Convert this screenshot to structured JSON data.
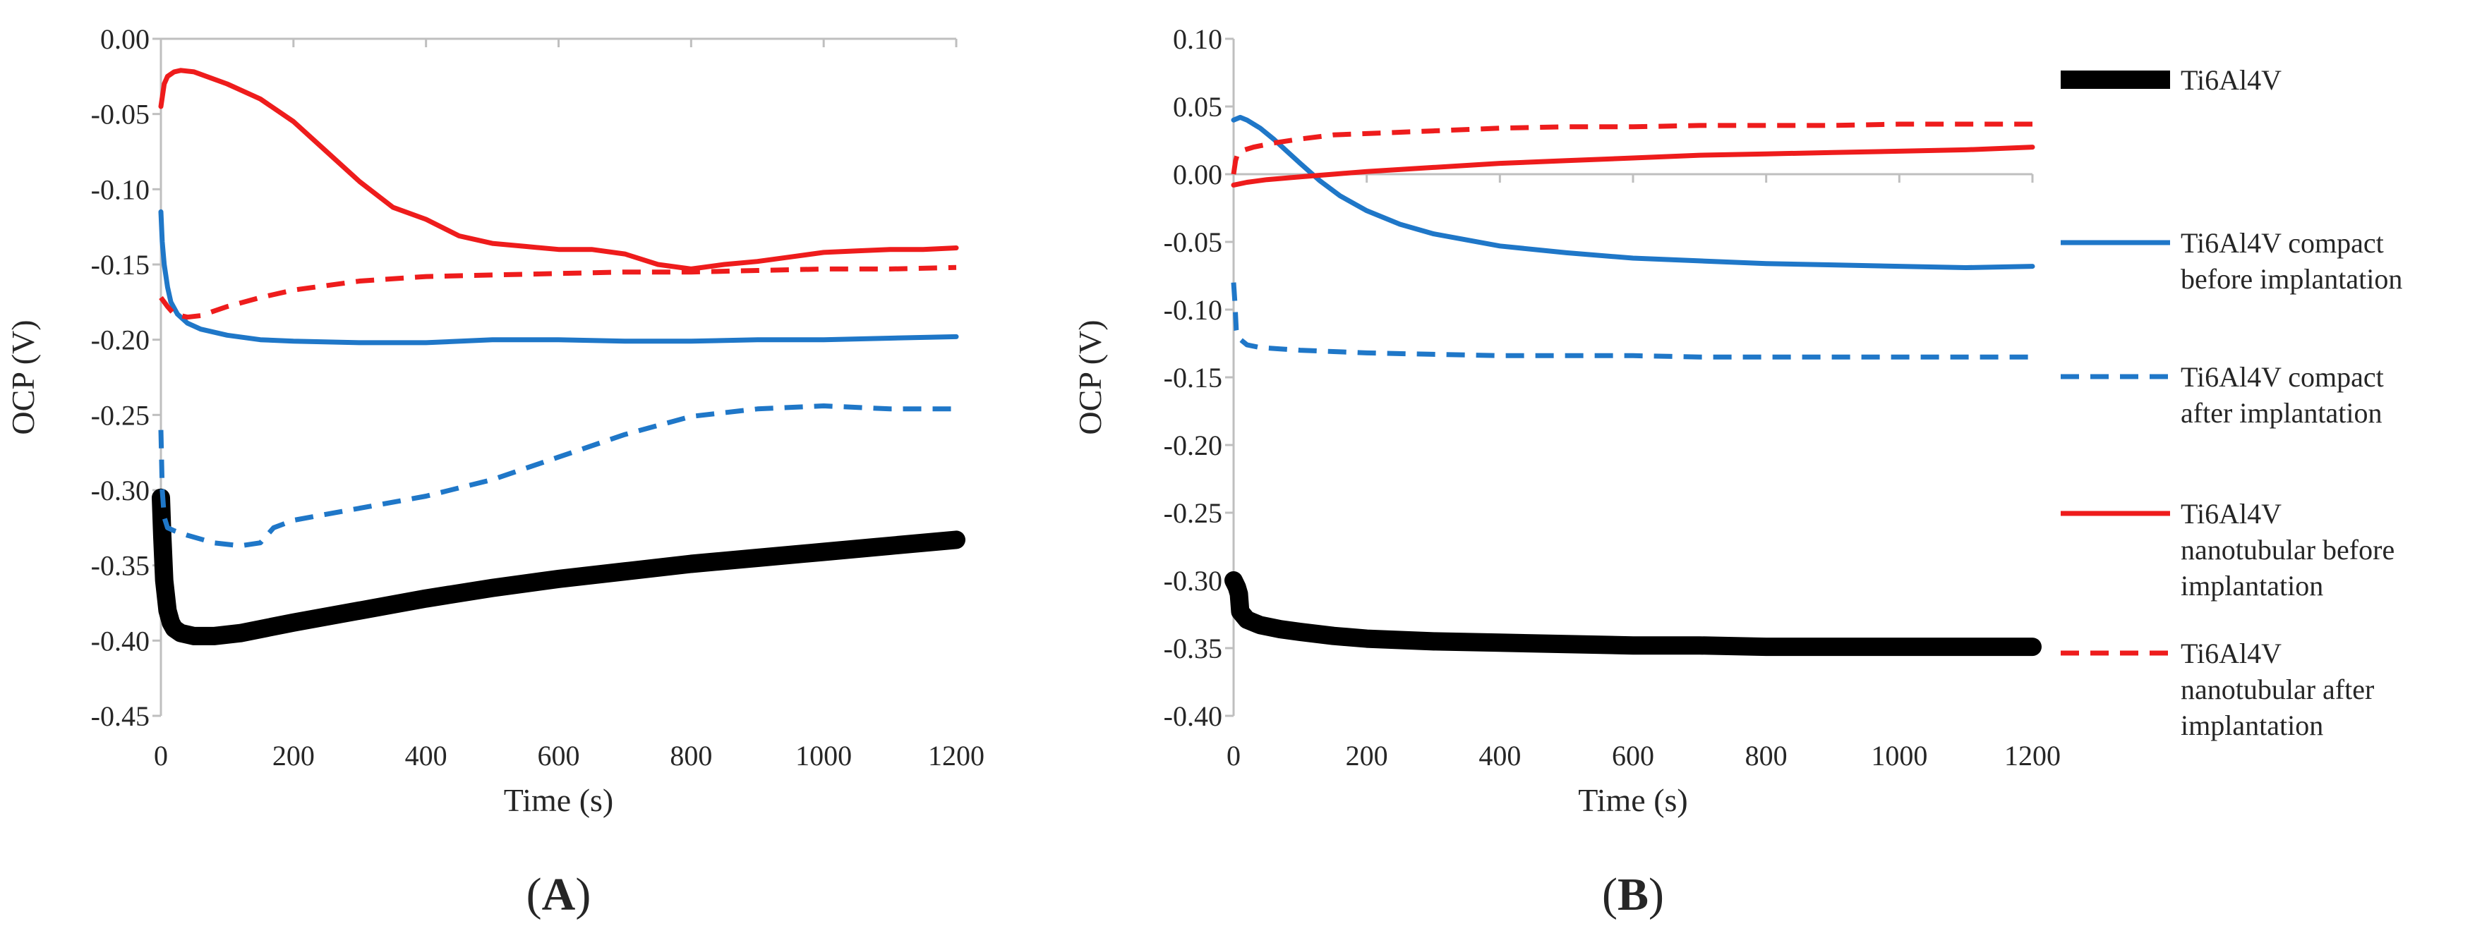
{
  "chart_data": [
    {
      "type": "line",
      "panel_label_open": "(",
      "panel_label": "A",
      "panel_label_close": ")",
      "xlabel": "Time (s)",
      "ylabel": "OCP (V)",
      "xlim": [
        0,
        1200
      ],
      "ylim": [
        -0.45,
        0.0
      ],
      "xticks": [
        0,
        200,
        400,
        600,
        800,
        1000,
        1200
      ],
      "xtick_labels": [
        "0",
        "200",
        "400",
        "600",
        "800",
        "1000",
        "1200"
      ],
      "yticks": [
        0.0,
        -0.05,
        -0.1,
        -0.15,
        -0.2,
        -0.25,
        -0.3,
        -0.35,
        -0.4,
        -0.45
      ],
      "ytick_labels": [
        "0.00",
        "-0.05",
        "-0.10",
        "-0.15",
        "-0.20",
        "-0.25",
        "-0.30",
        "-0.35",
        "-0.40",
        "-0.45"
      ],
      "series": [
        {
          "name": "Ti6Al4V",
          "color": "#000000",
          "style": "solid",
          "weight": "thick",
          "x": [
            0,
            2,
            5,
            10,
            15,
            20,
            30,
            50,
            80,
            120,
            200,
            300,
            400,
            500,
            600,
            700,
            800,
            900,
            1000,
            1100,
            1200
          ],
          "y": [
            -0.305,
            -0.33,
            -0.36,
            -0.38,
            -0.388,
            -0.392,
            -0.395,
            -0.397,
            -0.397,
            -0.395,
            -0.388,
            -0.38,
            -0.372,
            -0.365,
            -0.359,
            -0.354,
            -0.349,
            -0.345,
            -0.341,
            -0.337,
            -0.333
          ]
        },
        {
          "name": "Ti6Al4V compact before implantation",
          "color": "#1f77c8",
          "style": "solid",
          "weight": "normal",
          "x": [
            0,
            2,
            5,
            10,
            15,
            25,
            40,
            60,
            100,
            150,
            200,
            300,
            400,
            500,
            600,
            700,
            800,
            900,
            1000,
            1100,
            1200
          ],
          "y": [
            -0.115,
            -0.135,
            -0.15,
            -0.165,
            -0.175,
            -0.183,
            -0.189,
            -0.193,
            -0.197,
            -0.2,
            -0.201,
            -0.202,
            -0.202,
            -0.2,
            -0.2,
            -0.201,
            -0.201,
            -0.2,
            -0.2,
            -0.199,
            -0.198
          ]
        },
        {
          "name": "Ti6Al4V compact after implantation",
          "color": "#1f77c8",
          "style": "dashed",
          "weight": "normal",
          "x": [
            0,
            2,
            5,
            10,
            20,
            40,
            80,
            120,
            150,
            170,
            200,
            300,
            400,
            500,
            600,
            700,
            800,
            900,
            1000,
            1100,
            1200
          ],
          "y": [
            -0.26,
            -0.3,
            -0.318,
            -0.325,
            -0.327,
            -0.33,
            -0.335,
            -0.337,
            -0.335,
            -0.325,
            -0.32,
            -0.312,
            -0.304,
            -0.293,
            -0.278,
            -0.263,
            -0.251,
            -0.246,
            -0.244,
            -0.246,
            -0.246
          ]
        },
        {
          "name": "Ti6Al4V nanotubular before implantation",
          "color": "#ee1c1c",
          "style": "solid",
          "weight": "normal",
          "x": [
            0,
            5,
            10,
            20,
            30,
            50,
            100,
            150,
            200,
            250,
            300,
            350,
            400,
            450,
            500,
            550,
            600,
            650,
            700,
            750,
            800,
            850,
            900,
            950,
            1000,
            1050,
            1100,
            1150,
            1200
          ],
          "y": [
            -0.045,
            -0.03,
            -0.025,
            -0.022,
            -0.021,
            -0.022,
            -0.03,
            -0.04,
            -0.055,
            -0.075,
            -0.095,
            -0.112,
            -0.12,
            -0.131,
            -0.136,
            -0.138,
            -0.14,
            -0.14,
            -0.143,
            -0.15,
            -0.153,
            -0.15,
            -0.148,
            -0.145,
            -0.142,
            -0.141,
            -0.14,
            -0.14,
            -0.139
          ]
        },
        {
          "name": "Ti6Al4V nanotubular after implantation",
          "color": "#ee1c1c",
          "style": "dashed",
          "weight": "normal",
          "x": [
            0,
            5,
            10,
            20,
            40,
            60,
            100,
            150,
            200,
            300,
            400,
            500,
            600,
            700,
            800,
            900,
            1000,
            1100,
            1200
          ],
          "y": [
            -0.172,
            -0.175,
            -0.178,
            -0.183,
            -0.185,
            -0.184,
            -0.178,
            -0.172,
            -0.167,
            -0.161,
            -0.158,
            -0.157,
            -0.156,
            -0.155,
            -0.155,
            -0.154,
            -0.153,
            -0.153,
            -0.152
          ]
        }
      ]
    },
    {
      "type": "line",
      "panel_label_open": "(",
      "panel_label": "B",
      "panel_label_close": ")",
      "xlabel": "Time (s)",
      "ylabel": "OCP (V)",
      "xlim": [
        0,
        1200
      ],
      "ylim": [
        -0.4,
        0.1
      ],
      "xticks": [
        0,
        200,
        400,
        600,
        800,
        1000,
        1200
      ],
      "xtick_labels": [
        "0",
        "200",
        "400",
        "600",
        "800",
        "1000",
        "1200"
      ],
      "yticks": [
        0.1,
        0.05,
        0.0,
        -0.05,
        -0.1,
        -0.15,
        -0.2,
        -0.25,
        -0.3,
        -0.35,
        -0.4
      ],
      "ytick_labels": [
        "0.10",
        "0.05",
        "0.00",
        "-0.05",
        "-0.10",
        "-0.15",
        "-0.20",
        "-0.25",
        "-0.30",
        "-0.35",
        "-0.40"
      ],
      "series": [
        {
          "name": "Ti6Al4V",
          "color": "#000000",
          "style": "solid",
          "weight": "thick",
          "x": [
            0,
            2,
            5,
            8,
            10,
            20,
            40,
            70,
            100,
            150,
            200,
            300,
            400,
            500,
            600,
            700,
            800,
            900,
            1000,
            1100,
            1200
          ],
          "y": [
            -0.3,
            -0.302,
            -0.305,
            -0.31,
            -0.323,
            -0.329,
            -0.333,
            -0.336,
            -0.338,
            -0.341,
            -0.343,
            -0.345,
            -0.346,
            -0.347,
            -0.348,
            -0.348,
            -0.349,
            -0.349,
            -0.349,
            -0.349,
            -0.349
          ]
        },
        {
          "name": "Ti6Al4V compact before implantation",
          "color": "#1f77c8",
          "style": "solid",
          "weight": "normal",
          "x": [
            0,
            10,
            20,
            40,
            60,
            80,
            100,
            130,
            160,
            200,
            250,
            300,
            400,
            500,
            600,
            700,
            800,
            900,
            1000,
            1100,
            1200
          ],
          "y": [
            0.04,
            0.042,
            0.04,
            0.034,
            0.026,
            0.017,
            0.008,
            -0.005,
            -0.016,
            -0.027,
            -0.037,
            -0.044,
            -0.053,
            -0.058,
            -0.062,
            -0.064,
            -0.066,
            -0.067,
            -0.068,
            -0.069,
            -0.068
          ]
        },
        {
          "name": "Ti6Al4V compact after implantation",
          "color": "#1f77c8",
          "style": "dashed",
          "weight": "normal",
          "x": [
            0,
            2,
            4,
            6,
            10,
            20,
            40,
            70,
            100,
            150,
            200,
            300,
            400,
            500,
            600,
            700,
            800,
            900,
            1000,
            1100,
            1200
          ],
          "y": [
            -0.08,
            -0.095,
            -0.115,
            -0.12,
            -0.122,
            -0.126,
            -0.128,
            -0.129,
            -0.13,
            -0.131,
            -0.132,
            -0.133,
            -0.134,
            -0.134,
            -0.134,
            -0.135,
            -0.135,
            -0.135,
            -0.135,
            -0.135,
            -0.135
          ]
        },
        {
          "name": "Ti6Al4V nanotubular before implantation",
          "color": "#ee1c1c",
          "style": "solid",
          "weight": "normal",
          "x": [
            0,
            20,
            50,
            100,
            150,
            200,
            300,
            400,
            500,
            600,
            700,
            800,
            900,
            1000,
            1100,
            1200
          ],
          "y": [
            -0.008,
            -0.006,
            -0.004,
            -0.002,
            0.0,
            0.002,
            0.005,
            0.008,
            0.01,
            0.012,
            0.014,
            0.015,
            0.016,
            0.017,
            0.018,
            0.02
          ]
        },
        {
          "name": "Ti6Al4V nanotubular after implantation",
          "color": "#ee1c1c",
          "style": "dashed",
          "weight": "normal",
          "x": [
            0,
            3,
            6,
            10,
            30,
            60,
            100,
            150,
            200,
            300,
            400,
            500,
            600,
            700,
            800,
            900,
            1000,
            1100,
            1200
          ],
          "y": [
            0.0,
            0.01,
            0.015,
            0.017,
            0.02,
            0.023,
            0.026,
            0.029,
            0.03,
            0.032,
            0.034,
            0.035,
            0.035,
            0.036,
            0.036,
            0.036,
            0.037,
            0.037,
            0.037
          ]
        }
      ]
    }
  ],
  "legend": {
    "entries": [
      {
        "lines": [
          "Ti6Al4V"
        ],
        "color": "#000000",
        "style": "solid",
        "weight": "thick"
      },
      {
        "lines": [
          "Ti6Al4V compact",
          "before implantation"
        ],
        "color": "#1f77c8",
        "style": "solid",
        "weight": "normal"
      },
      {
        "lines": [
          "Ti6Al4V compact",
          "after implantation"
        ],
        "color": "#1f77c8",
        "style": "dashed",
        "weight": "normal"
      },
      {
        "lines": [
          "Ti6Al4V",
          "nanotubular before",
          "implantation"
        ],
        "color": "#ee1c1c",
        "style": "solid",
        "weight": "normal"
      },
      {
        "lines": [
          "Ti6Al4V",
          "nanotubular after",
          "implantation"
        ],
        "color": "#ee1c1c",
        "style": "dashed",
        "weight": "normal"
      }
    ]
  }
}
